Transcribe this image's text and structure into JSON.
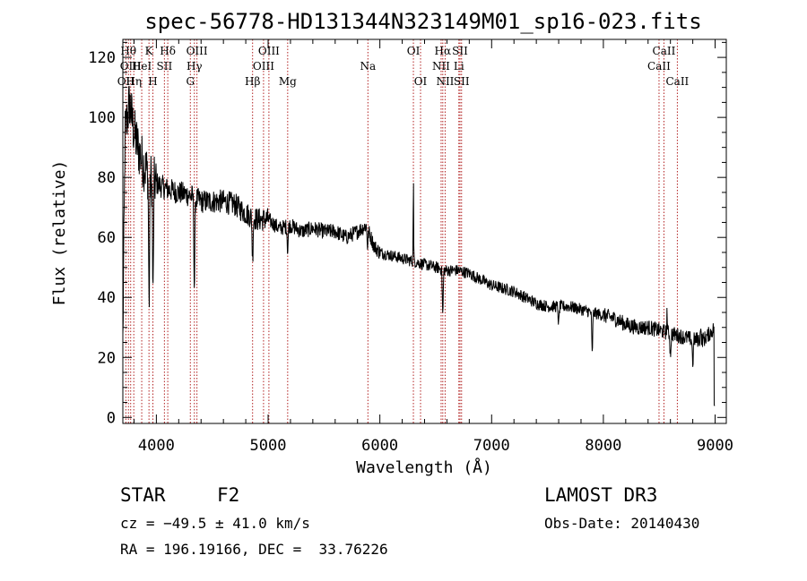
{
  "chart_data": {
    "type": "line",
    "title": "spec-56778-HD131344N323149M01_sp16-023.fits",
    "xlabel": "Wavelength (Å)",
    "ylabel": "Flux (relative)",
    "xlim": [
      3700,
      9100
    ],
    "ylim": [
      -2,
      126
    ],
    "xticks": [
      4000,
      5000,
      6000,
      7000,
      8000,
      9000
    ],
    "xtick_labels": [
      "4000",
      "5000",
      "6000",
      "7000",
      "8000",
      "9000"
    ],
    "yticks": [
      0,
      20,
      40,
      60,
      80,
      100,
      120
    ],
    "ytick_labels": [
      "0",
      "20",
      "40",
      "60",
      "80",
      "100",
      "120"
    ],
    "series": [
      {
        "name": "spectrum",
        "continuum_wavelength": [
          3700,
          3720,
          3760,
          3800,
          3850,
          3900,
          3950,
          4000,
          4100,
          4200,
          4300,
          4400,
          4500,
          4600,
          4700,
          4800,
          4900,
          5000,
          5100,
          5200,
          5300,
          5400,
          5500,
          5600,
          5700,
          5800,
          5880,
          5950,
          6000,
          6100,
          6200,
          6300,
          6400,
          6500,
          6600,
          6700,
          6800,
          6900,
          7000,
          7100,
          7200,
          7300,
          7400,
          7500,
          7600,
          7700,
          7800,
          7900,
          8000,
          8100,
          8200,
          8300,
          8400,
          8500,
          8600,
          8700,
          8800,
          8900,
          9000
        ],
        "continuum_flux": [
          25,
          95,
          105,
          95,
          88,
          83,
          80,
          78,
          76,
          75,
          74,
          72,
          72,
          72,
          71,
          68,
          66,
          66,
          63,
          64,
          62,
          63,
          62,
          62,
          60,
          62,
          64,
          57,
          55,
          54,
          53,
          52,
          51,
          50,
          49,
          49,
          48,
          46,
          44,
          43,
          42,
          40,
          38,
          37,
          37,
          37,
          36,
          35,
          34,
          33,
          31,
          30,
          30,
          29,
          28,
          27,
          26,
          26,
          30
        ],
        "absorption_features": [
          {
            "wavelength": 3935,
            "depth": 45
          },
          {
            "wavelength": 3970,
            "depth": 40
          },
          {
            "wavelength": 4340,
            "depth": 30
          },
          {
            "wavelength": 4861,
            "depth": 14
          },
          {
            "wavelength": 5175,
            "depth": 8
          },
          {
            "wavelength": 5890,
            "depth": 6
          },
          {
            "wavelength": 6563,
            "depth": 15
          },
          {
            "wavelength": 7600,
            "depth": 6
          },
          {
            "wavelength": 7900,
            "depth": 14
          },
          {
            "wavelength": 8600,
            "depth": 7
          },
          {
            "wavelength": 8800,
            "depth": 8
          }
        ],
        "emission_features": [
          {
            "wavelength": 6300,
            "height": 28
          },
          {
            "wavelength": 8570,
            "height": 8
          },
          {
            "wavelength": 8870,
            "height": 6
          }
        ]
      }
    ],
    "line_markers": [
      {
        "wavelength": 3727,
        "label": "OII",
        "row": 2
      },
      {
        "wavelength": 3750,
        "label": "Hθ",
        "row": 0
      },
      {
        "wavelength": 3770,
        "label": "OIII",
        "row": 1
      },
      {
        "wavelength": 3798,
        "label": "Hη",
        "row": 2
      },
      {
        "wavelength": 3869,
        "label": "HeI",
        "row": 1
      },
      {
        "wavelength": 3934,
        "label": "K",
        "row": 0
      },
      {
        "wavelength": 3969,
        "label": "H",
        "row": 2
      },
      {
        "wavelength": 4072,
        "label": "SII",
        "row": 1
      },
      {
        "wavelength": 4102,
        "label": "Hδ",
        "row": 0
      },
      {
        "wavelength": 4304,
        "label": "G",
        "row": 2
      },
      {
        "wavelength": 4340,
        "label": "Hγ",
        "row": 1
      },
      {
        "wavelength": 4363,
        "label": "OIII",
        "row": 0
      },
      {
        "wavelength": 4861,
        "label": "Hβ",
        "row": 2
      },
      {
        "wavelength": 4959,
        "label": "OIII",
        "row": 1
      },
      {
        "wavelength": 5007,
        "label": "OIII",
        "row": 0
      },
      {
        "wavelength": 5175,
        "label": "Mg",
        "row": 2
      },
      {
        "wavelength": 5893,
        "label": "Na",
        "row": 1
      },
      {
        "wavelength": 6300,
        "label": "OI",
        "row": 0
      },
      {
        "wavelength": 6364,
        "label": "OI",
        "row": 2
      },
      {
        "wavelength": 6548,
        "label": "NII",
        "row": 1
      },
      {
        "wavelength": 6563,
        "label": "Hα",
        "row": 0
      },
      {
        "wavelength": 6584,
        "label": "NII",
        "row": 2
      },
      {
        "wavelength": 6707,
        "label": "Li",
        "row": 1
      },
      {
        "wavelength": 6717,
        "label": "SII",
        "row": 0
      },
      {
        "wavelength": 6731,
        "label": "SII",
        "row": 2
      },
      {
        "wavelength": 8498,
        "label": "CaII",
        "row": 1
      },
      {
        "wavelength": 8542,
        "label": "CaII",
        "row": 0
      },
      {
        "wavelength": 8662,
        "label": "CaII",
        "row": 2
      }
    ]
  },
  "info": {
    "object_class": "STAR",
    "subclass": "F2",
    "survey": "LAMOST DR3",
    "redshift": "cz = −49.5 ± 41.0 km/s",
    "obs_date": "Obs-Date: 20140430",
    "coords": "RA = 196.19166, DEC =  33.76226"
  },
  "colors": {
    "spectrum": "#000000",
    "line_marker": "#b22222",
    "axes": "#000000"
  }
}
